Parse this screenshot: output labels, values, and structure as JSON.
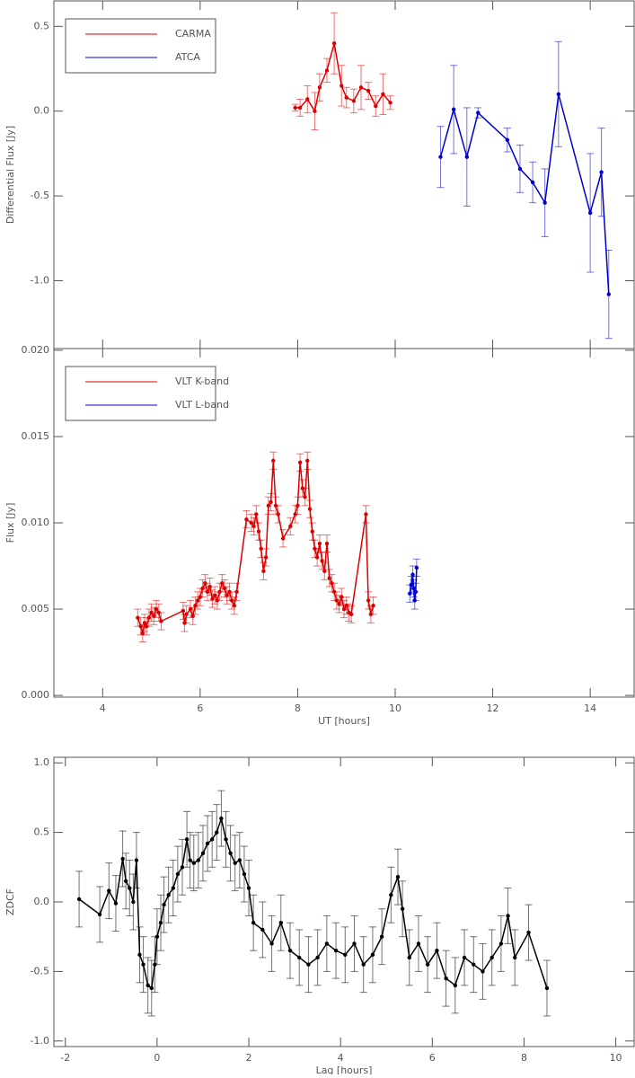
{
  "chart_data": [
    {
      "type": "line",
      "ylabel": "Differential Flux [Jy]",
      "legend": "upper left",
      "xlim": [
        3,
        14.9
      ],
      "xticks": [
        4,
        6,
        8,
        10,
        12,
        14
      ],
      "ylim": [
        -1.4,
        0.65
      ],
      "yticks": [
        {
          "value": -1.0,
          "label": "-1.0"
        },
        {
          "value": -0.5,
          "label": "-0.5"
        },
        {
          "value": 0.0,
          "label": "0.0"
        },
        {
          "value": 0.5,
          "label": "0.5"
        }
      ],
      "series": [
        {
          "name": "CARMA",
          "color": "#dd0000",
          "x": [
            7.95,
            8.05,
            8.2,
            8.35,
            8.45,
            8.6,
            8.75,
            8.9,
            9.0,
            9.15,
            9.3,
            9.45,
            9.6,
            9.75,
            9.9
          ],
          "values": [
            0.02,
            0.02,
            0.07,
            0.0,
            0.14,
            0.24,
            0.4,
            0.15,
            0.08,
            0.06,
            0.14,
            0.12,
            0.03,
            0.1,
            0.05
          ],
          "errors": [
            0.02,
            0.05,
            0.08,
            0.11,
            0.08,
            0.07,
            0.18,
            0.12,
            0.06,
            0.07,
            0.13,
            0.05,
            0.06,
            0.12,
            0.04
          ]
        },
        {
          "name": "ATCA",
          "color": "#0000cc",
          "x": [
            10.93,
            11.2,
            11.47,
            11.7,
            12.3,
            12.56,
            12.82,
            13.07,
            13.35,
            14.0,
            14.23,
            14.38
          ],
          "values": [
            -0.27,
            0.01,
            -0.27,
            -0.01,
            -0.17,
            -0.34,
            -0.42,
            -0.54,
            0.1,
            -0.6,
            -0.36,
            -1.08
          ],
          "errors": [
            0.18,
            0.26,
            0.29,
            0.03,
            0.07,
            0.14,
            0.12,
            0.2,
            0.31,
            0.35,
            0.26,
            0.26
          ]
        }
      ]
    },
    {
      "type": "line",
      "xlabel": "UT [hours]",
      "ylabel": "Flux [Jy]",
      "legend": "upper left",
      "xlim": [
        3,
        14.9
      ],
      "xticks": [
        4,
        6,
        8,
        10,
        12,
        14
      ],
      "ylim": [
        -0.0001,
        0.0201
      ],
      "yticks": [
        {
          "value": 0.0,
          "label": "0.000"
        },
        {
          "value": 0.005,
          "label": "0.005"
        },
        {
          "value": 0.01,
          "label": "0.010"
        },
        {
          "value": 0.015,
          "label": "0.015"
        },
        {
          "value": 0.02,
          "label": "0.020"
        }
      ],
      "series": [
        {
          "name": "VLT K-band",
          "color": "#dd0000",
          "errors": 0.0005,
          "x": [
            4.72,
            4.78,
            4.82,
            4.86,
            4.9,
            4.95,
            5.0,
            5.05,
            5.1,
            5.15,
            5.2,
            5.65,
            5.68,
            5.72,
            5.8,
            5.85,
            5.9,
            5.95,
            6.0,
            6.05,
            6.1,
            6.15,
            6.2,
            6.25,
            6.3,
            6.35,
            6.4,
            6.45,
            6.5,
            6.55,
            6.6,
            6.65,
            6.7,
            6.75,
            6.95,
            7.05,
            7.1,
            7.15,
            7.2,
            7.25,
            7.3,
            7.35,
            7.4,
            7.45,
            7.5,
            7.55,
            7.6,
            7.7,
            7.85,
            7.95,
            8.0,
            8.05,
            8.1,
            8.15,
            8.2,
            8.25,
            8.3,
            8.35,
            8.4,
            8.45,
            8.5,
            8.55,
            8.6,
            8.65,
            8.7,
            8.75,
            8.8,
            8.85,
            8.9,
            8.95,
            9.0,
            9.05,
            9.1,
            9.4,
            9.45,
            9.5,
            9.55
          ],
          "values": [
            0.0045,
            0.004,
            0.0036,
            0.0042,
            0.004,
            0.0045,
            0.0048,
            0.0046,
            0.005,
            0.0048,
            0.0043,
            0.0049,
            0.0042,
            0.0047,
            0.005,
            0.0046,
            0.0052,
            0.0055,
            0.0057,
            0.0062,
            0.0065,
            0.006,
            0.0063,
            0.0056,
            0.0058,
            0.0055,
            0.006,
            0.0065,
            0.0062,
            0.0058,
            0.006,
            0.0055,
            0.0052,
            0.006,
            0.0102,
            0.01,
            0.0098,
            0.0105,
            0.0095,
            0.0085,
            0.0072,
            0.008,
            0.011,
            0.0112,
            0.0136,
            0.011,
            0.0105,
            0.0091,
            0.0098,
            0.0105,
            0.011,
            0.0135,
            0.012,
            0.0115,
            0.0136,
            0.0108,
            0.0095,
            0.0085,
            0.008,
            0.0088,
            0.0078,
            0.0072,
            0.0088,
            0.0068,
            0.0065,
            0.006,
            0.0055,
            0.0053,
            0.0057,
            0.005,
            0.0052,
            0.0048,
            0.0047,
            0.0105,
            0.0055,
            0.0047,
            0.0052
          ]
        },
        {
          "name": "VLT L-band",
          "color": "#0000cc",
          "errors": 0.0005,
          "x": [
            10.3,
            10.33,
            10.36,
            10.38,
            10.4,
            10.42,
            10.44
          ],
          "values": [
            0.0059,
            0.0064,
            0.007,
            0.0062,
            0.0055,
            0.006,
            0.0074
          ]
        }
      ]
    },
    {
      "type": "line",
      "xlabel": "Lag [hours]",
      "ylabel": "ZDCF",
      "xlim": [
        -2.25,
        10.4
      ],
      "xticks": [
        -2,
        0,
        2,
        4,
        6,
        8,
        10
      ],
      "ylim": [
        -1.04,
        1.04
      ],
      "yticks": [
        {
          "value": -1.0,
          "label": "-1.0"
        },
        {
          "value": -0.5,
          "label": "-0.5"
        },
        {
          "value": 0.0,
          "label": "0.0"
        },
        {
          "value": 0.5,
          "label": "0.5"
        },
        {
          "value": 1.0,
          "label": "1.0"
        }
      ],
      "series": [
        {
          "color": "#000000",
          "errors": 0.2,
          "x": [
            -1.7,
            -1.25,
            -1.05,
            -0.9,
            -0.75,
            -0.68,
            -0.6,
            -0.52,
            -0.45,
            -0.38,
            -0.3,
            -0.2,
            -0.12,
            -0.05,
            0.0,
            0.08,
            0.15,
            0.25,
            0.35,
            0.45,
            0.55,
            0.65,
            0.72,
            0.8,
            0.9,
            1.0,
            1.1,
            1.2,
            1.3,
            1.4,
            1.5,
            1.6,
            1.7,
            1.8,
            1.9,
            2.0,
            2.1,
            2.3,
            2.5,
            2.7,
            2.9,
            3.1,
            3.3,
            3.5,
            3.7,
            3.9,
            4.1,
            4.3,
            4.5,
            4.7,
            4.9,
            5.1,
            5.25,
            5.35,
            5.5,
            5.7,
            5.9,
            6.1,
            6.3,
            6.5,
            6.7,
            6.9,
            7.1,
            7.3,
            7.5,
            7.65,
            7.8,
            8.1,
            8.5
          ],
          "values": [
            0.02,
            -0.09,
            0.08,
            -0.01,
            0.31,
            0.15,
            0.1,
            0.0,
            0.3,
            -0.38,
            -0.45,
            -0.6,
            -0.62,
            -0.45,
            -0.25,
            -0.15,
            -0.02,
            0.05,
            0.1,
            0.2,
            0.25,
            0.45,
            0.3,
            0.28,
            0.3,
            0.35,
            0.42,
            0.45,
            0.5,
            0.6,
            0.45,
            0.35,
            0.28,
            0.3,
            0.2,
            0.1,
            -0.15,
            -0.2,
            -0.3,
            -0.15,
            -0.35,
            -0.4,
            -0.45,
            -0.4,
            -0.3,
            -0.35,
            -0.38,
            -0.3,
            -0.45,
            -0.38,
            -0.25,
            0.05,
            0.18,
            -0.05,
            -0.4,
            -0.3,
            -0.45,
            -0.35,
            -0.55,
            -0.6,
            -0.4,
            -0.45,
            -0.5,
            -0.4,
            -0.3,
            -0.1,
            -0.4,
            -0.22,
            -0.62
          ]
        }
      ]
    }
  ]
}
